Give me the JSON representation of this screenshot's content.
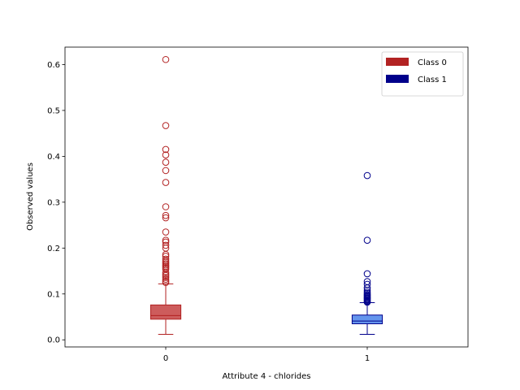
{
  "chart_data": {
    "type": "box",
    "xlabel": "Attribute 4 - chlorides",
    "ylabel": "Observed values",
    "categories": [
      "0",
      "1"
    ],
    "ylim": [
      -0.0155,
      0.638
    ],
    "yticks": [
      "0.0",
      "0.1",
      "0.2",
      "0.3",
      "0.4",
      "0.5",
      "0.6"
    ],
    "legend_position": "upper right",
    "grid": false,
    "series": [
      {
        "name": "Class 0",
        "category": "0",
        "color": "#b22222",
        "fill": "#cd5c5c",
        "whisker_low": 0.012,
        "q1": 0.045,
        "median": 0.053,
        "q3": 0.076,
        "whisker_high": 0.122,
        "outliers": [
          0.611,
          0.467,
          0.415,
          0.403,
          0.387,
          0.369,
          0.343,
          0.29,
          0.271,
          0.266,
          0.235,
          0.217,
          0.213,
          0.206,
          0.2,
          0.186,
          0.182,
          0.176,
          0.172,
          0.169,
          0.166,
          0.163,
          0.16,
          0.157,
          0.154,
          0.147,
          0.143,
          0.14,
          0.136,
          0.132,
          0.128,
          0.125
        ]
      },
      {
        "name": "Class 1",
        "category": "1",
        "color": "#00008b",
        "fill": "#6495ed",
        "whisker_low": 0.012,
        "q1": 0.035,
        "median": 0.041,
        "q3": 0.054,
        "whisker_high": 0.081,
        "outliers": [
          0.358,
          0.217,
          0.144,
          0.127,
          0.121,
          0.113,
          0.108,
          0.104,
          0.101,
          0.098,
          0.096,
          0.094,
          0.092,
          0.09,
          0.088,
          0.086,
          0.084,
          0.082
        ]
      }
    ]
  }
}
